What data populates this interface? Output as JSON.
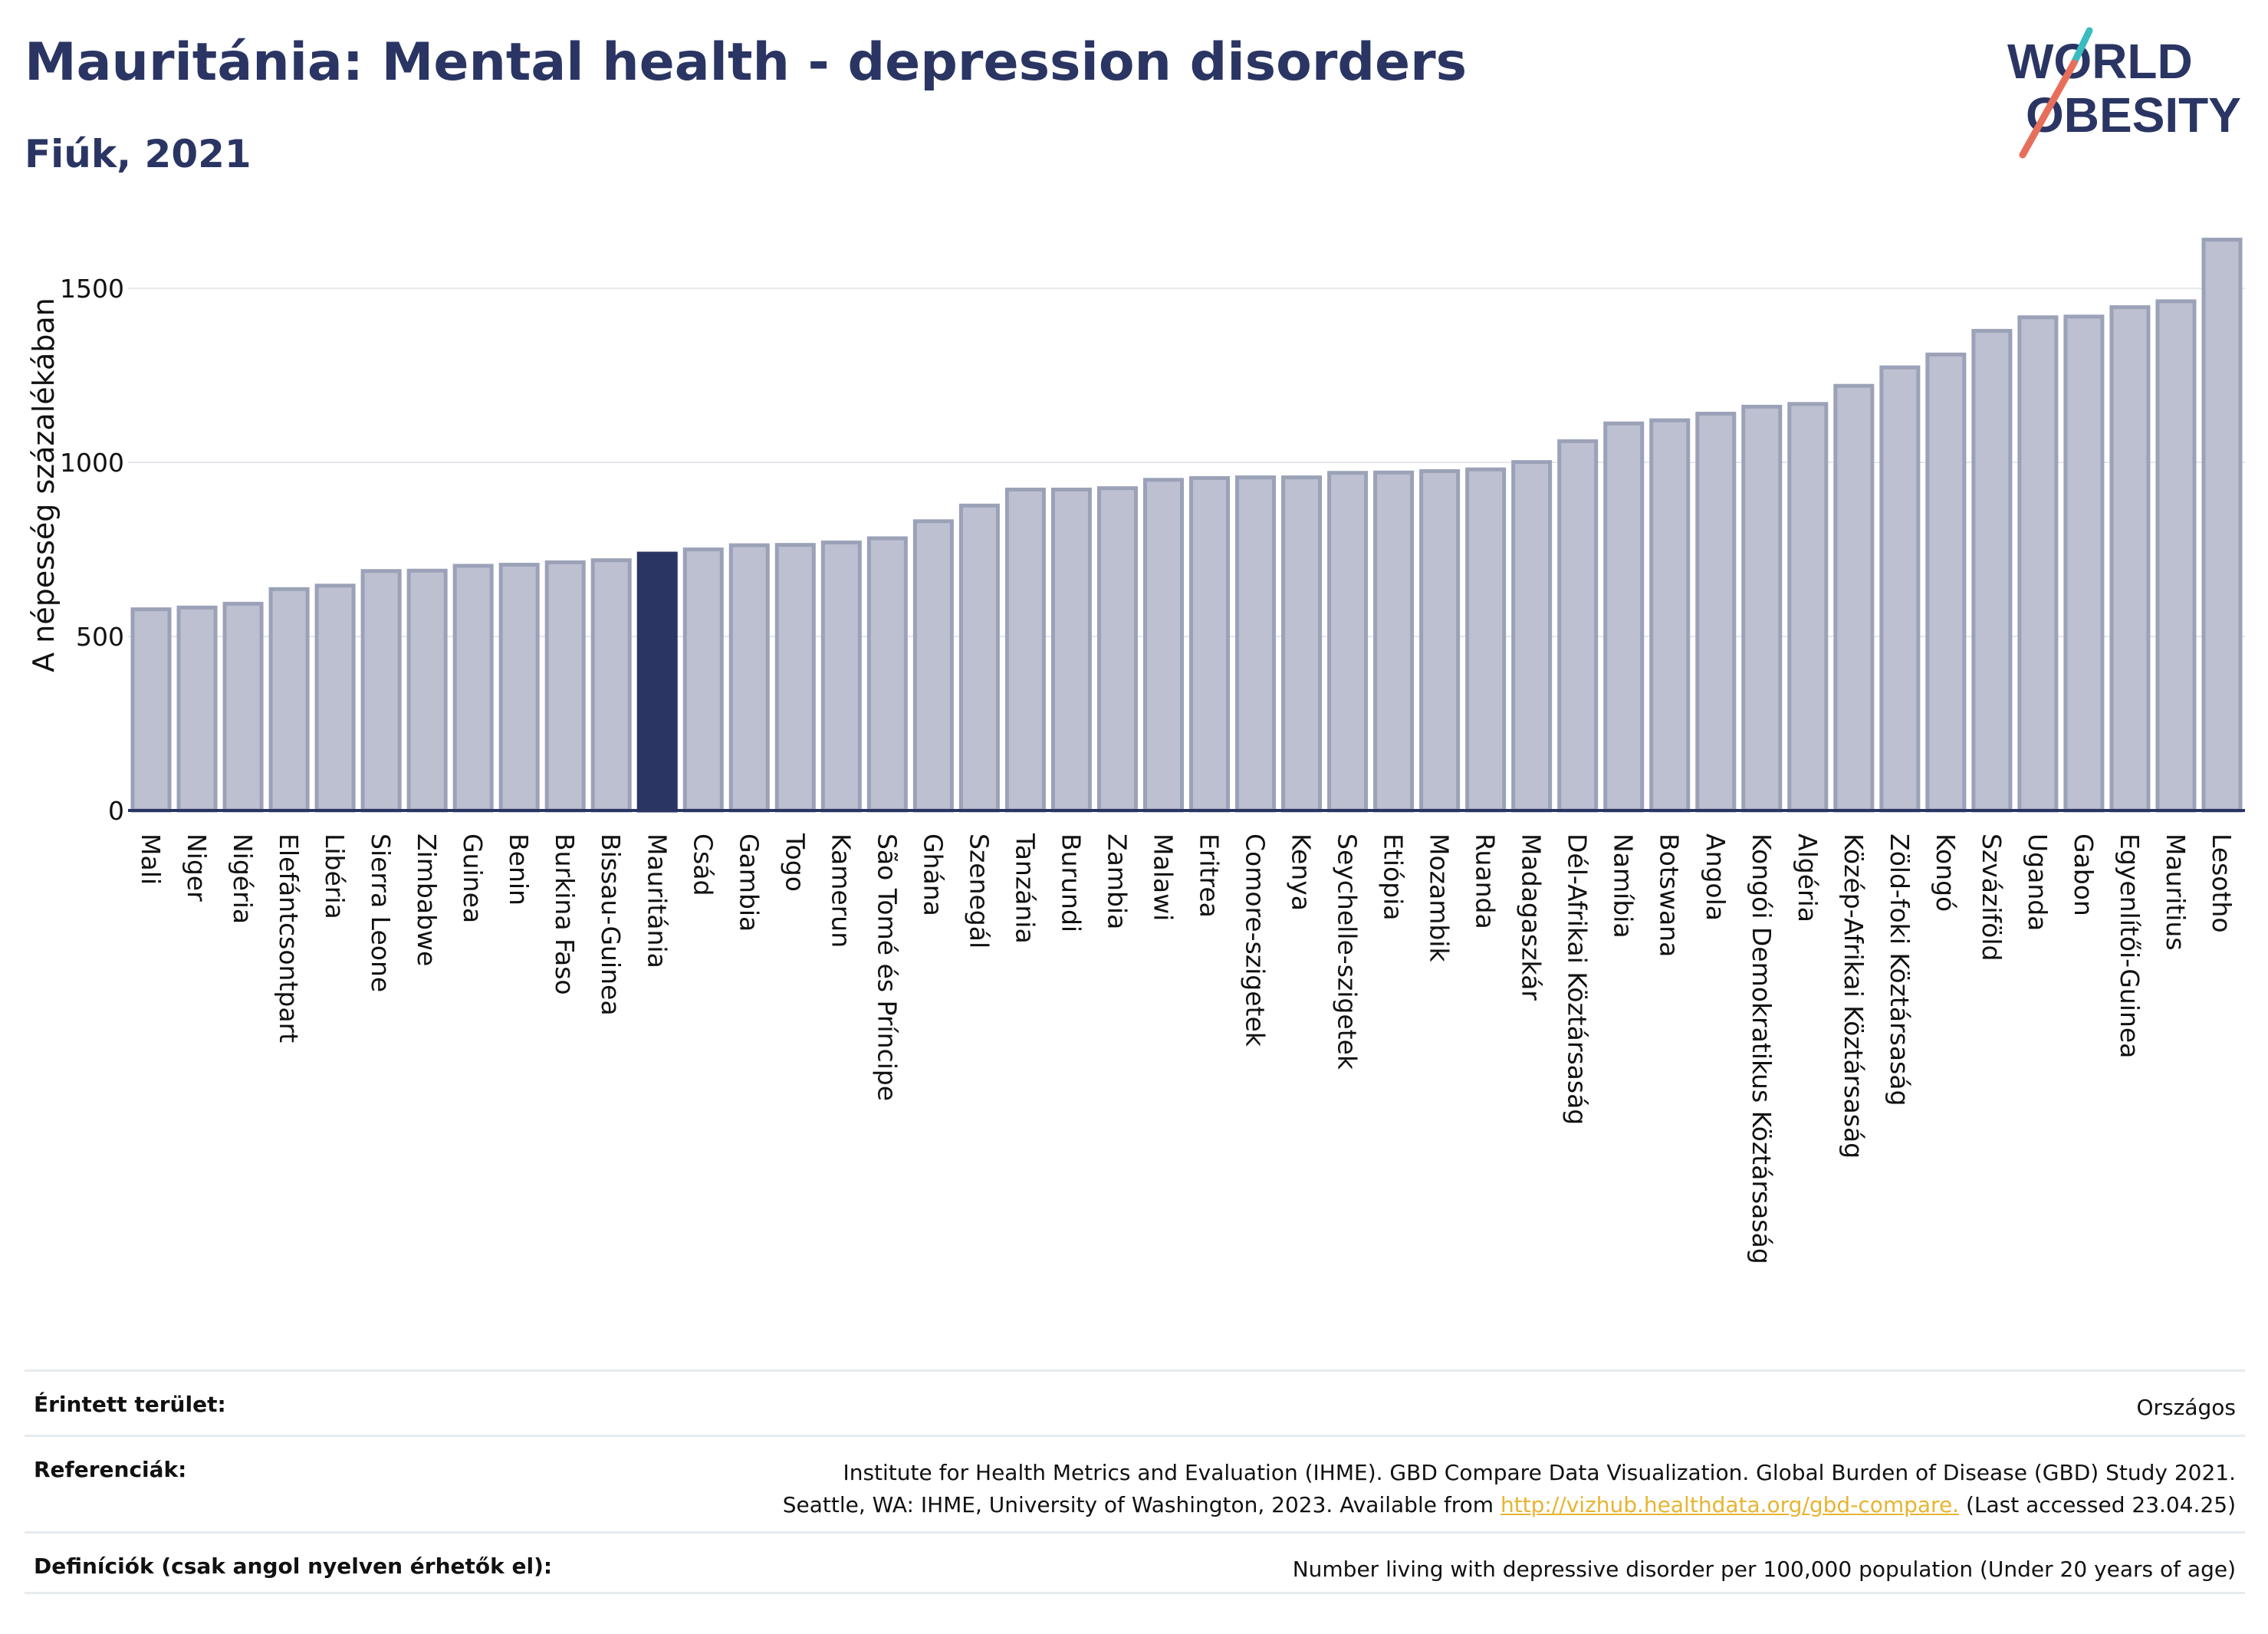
{
  "title": "Mauritánia: Mental health - depression disorders",
  "subtitle": "Fiúk, 2021",
  "logo": {
    "line1": "WORLD",
    "line2": "OBESITY"
  },
  "colors": {
    "bar": "#bcc0d0",
    "bar_stroke": "#9ba2b8",
    "highlight": "#2a3563",
    "grid": "#e4e7ec",
    "axis": "#2a3563"
  },
  "chart_data": {
    "type": "bar",
    "ylabel": "A népesség százalékában",
    "ylim": [
      0,
      1650
    ],
    "yticks": [
      0,
      500,
      1000,
      1500
    ],
    "highlight": "Mauritánia",
    "categories": [
      "Mali",
      "Niger",
      "Nigéria",
      "Elefántcsontpart",
      "Libéria",
      "Sierra Leone",
      "Zimbabwe",
      "Guinea",
      "Benin",
      "Burkina Faso",
      "Bissau-Guinea",
      "Mauritánia",
      "Csád",
      "Gambia",
      "Togo",
      "Kamerun",
      "São Tomé és Príncipe",
      "Ghána",
      "Szenegál",
      "Tanzánia",
      "Burundi",
      "Zambia",
      "Malawi",
      "Eritrea",
      "Comore-szigetek",
      "Kenya",
      "Seychelle-szigetek",
      "Etiópia",
      "Mozambik",
      "Ruanda",
      "Madagaszkár",
      "Dél-Afrikai Köztársaság",
      "Namíbia",
      "Botswana",
      "Angola",
      "Kongói Demokratikus Köztársaság",
      "Algéria",
      "Közép-Afrikai Köztársaság",
      "Zöld-foki Köztársaság",
      "Kongó",
      "Szváziföld",
      "Uganda",
      "Gabon",
      "Egyenlítői-Guinea",
      "Mauritius",
      "Lesotho"
    ],
    "values": [
      578,
      583,
      594,
      636,
      646,
      688,
      689,
      703,
      706,
      713,
      719,
      738,
      750,
      762,
      763,
      770,
      782,
      831,
      876,
      922,
      922,
      926,
      950,
      955,
      957,
      957,
      970,
      971,
      975,
      980,
      1001,
      1061,
      1112,
      1121,
      1140,
      1160,
      1168,
      1220,
      1273,
      1310,
      1378,
      1417,
      1419,
      1446,
      1463,
      1640
    ]
  },
  "footer": {
    "area_label": "Érintett terület:",
    "area_value": "Országos",
    "ref_label": "Referenciák:",
    "ref_line1": "Institute for Health Metrics and Evaluation (IHME). GBD Compare Data Visualization. Global Burden of Disease (GBD) Study 2021.",
    "ref_line2_pre": "Seattle, WA: IHME, University of Washington, 2023. Available from",
    "ref_link": "http://vizhub.healthdata.org/gbd-compare.",
    "ref_line2_post": "(Last accessed 23.04.25)",
    "def_label": "Definíciók (csak angol nyelven érhetők el):",
    "def_value": "Number living with depressive disorder per 100,000 population (Under 20 years of age)"
  }
}
